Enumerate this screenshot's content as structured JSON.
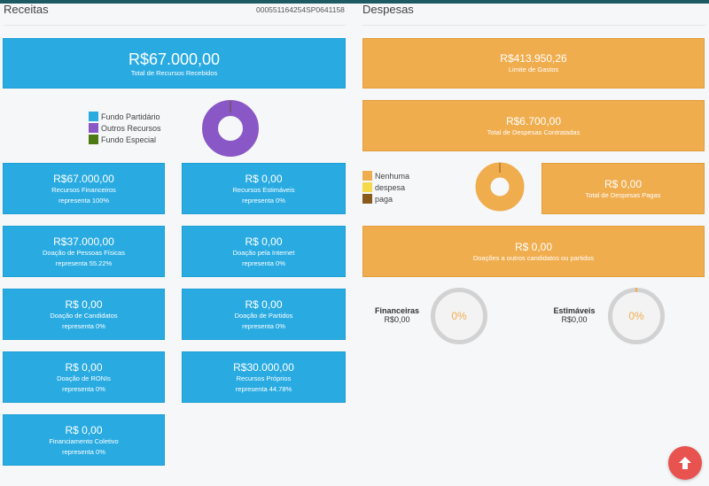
{
  "receitas": {
    "title": "Receitas",
    "code": "000551164254SP0641158",
    "total": {
      "value": "R$67.000,00",
      "label": "Total de Recursos Recebidos"
    },
    "legend": [
      {
        "label": "Fundo Partidário",
        "color": "#29abe2"
      },
      {
        "label": "Outros Recursos",
        "color": "#8a58c6"
      },
      {
        "label": "Fundo Especial",
        "color": "#4e7a14"
      }
    ],
    "cards": [
      {
        "value": "R$67.000,00",
        "label": "Recursos Financeiros",
        "sub": "representa 100%"
      },
      {
        "value": "R$ 0,00",
        "label": "Recursos Estimáveis",
        "sub": "representa 0%"
      },
      {
        "value": "R$37.000,00",
        "label": "Doação de Pessoas Físicas",
        "sub": "representa 55.22%"
      },
      {
        "value": "R$ 0,00",
        "label": "Doação pela Internet",
        "sub": "representa 0%"
      },
      {
        "value": "R$ 0,00",
        "label": "Doação de Candidatos",
        "sub": "representa 0%"
      },
      {
        "value": "R$ 0,00",
        "label": "Doação de Partidos",
        "sub": "representa 0%"
      },
      {
        "value": "R$ 0,00",
        "label": "Doação de RONIs",
        "sub": "representa 0%"
      },
      {
        "value": "R$30.000,00",
        "label": "Recursos Próprios",
        "sub": "representa 44.78%"
      },
      {
        "value": "R$ 0,00",
        "label": "Financiamento Coletivo",
        "sub": "representa 0%"
      }
    ]
  },
  "despesas": {
    "title": "Despesas",
    "limite": {
      "value": "R$413.950,26",
      "label": "Limite de Gastos"
    },
    "contratadas": {
      "value": "R$6.700,00",
      "label": "Total de Despesas Contratadas"
    },
    "legend": [
      {
        "label": "Nenhuma",
        "color": "#f0ad4e"
      },
      {
        "label": "despesa",
        "color": "#f4d94a"
      },
      {
        "label": "paga",
        "color": "#8a5a1c"
      }
    ],
    "pagas": {
      "value": "R$ 0,00",
      "label": "Total de Despesas Pagas"
    },
    "doacoes": {
      "value": "R$ 0,00",
      "label": "Doações a outros candidatos ou partidos"
    },
    "gauges": [
      {
        "name": "Financeiras",
        "value": "R$0,00",
        "percent": "0%"
      },
      {
        "name": "Estimáveis",
        "value": "R$0,00",
        "percent": "0%"
      }
    ]
  },
  "colors": {
    "blue": "#29abe2",
    "orange": "#f0ad4e",
    "fab": "#e8524f"
  },
  "icons": {
    "scroll_top": "arrow-up-icon"
  }
}
